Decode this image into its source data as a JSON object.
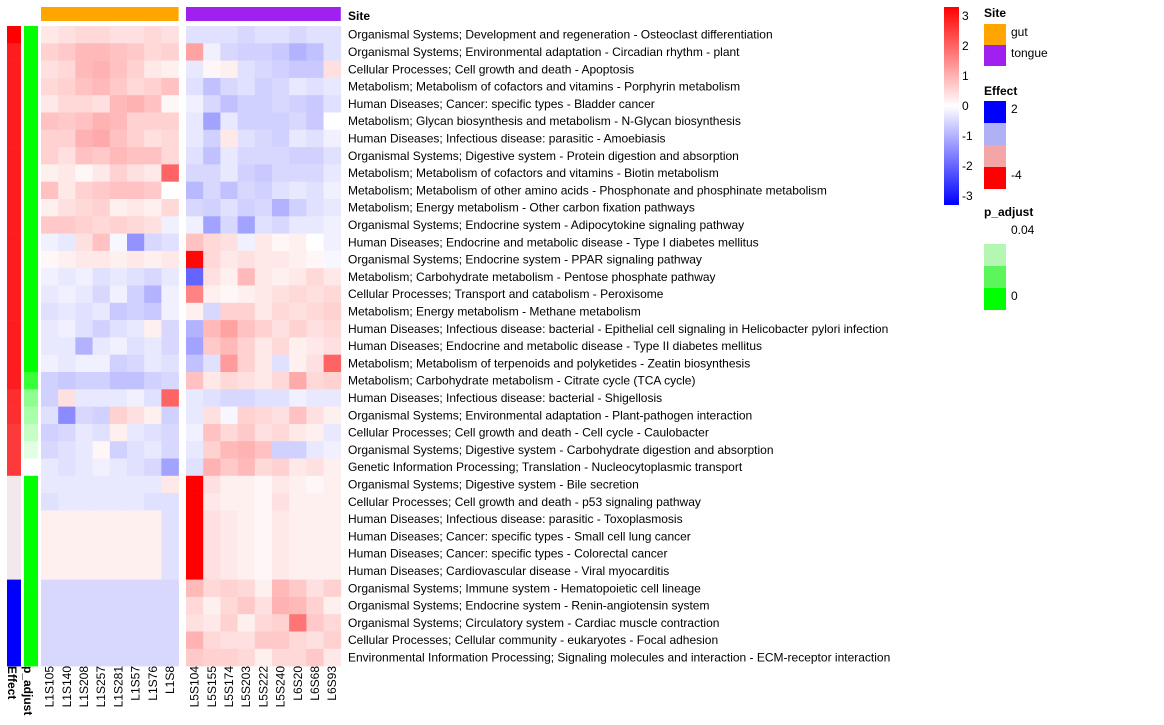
{
  "chart_data": {
    "type": "heatmap",
    "title": "",
    "annotation_labels": {
      "site": "Site",
      "effect": "Effect",
      "p_adjust": "p_adjust"
    },
    "columns": [
      "L1S105",
      "L1S140",
      "L1S208",
      "L1S257",
      "L1S281",
      "L1S57",
      "L1S76",
      "L1S8",
      "L5S104",
      "L5S155",
      "L5S174",
      "L5S203",
      "L5S222",
      "L5S240",
      "L6S20",
      "L6S68",
      "L6S93"
    ],
    "column_site": [
      "gut",
      "gut",
      "gut",
      "gut",
      "gut",
      "gut",
      "gut",
      "gut",
      "tongue",
      "tongue",
      "tongue",
      "tongue",
      "tongue",
      "tongue",
      "tongue",
      "tongue",
      "tongue"
    ],
    "rows": [
      "Organismal Systems; Development and regeneration - Osteoclast differentiation",
      "Organismal Systems; Environmental adaptation - Circadian rhythm - plant",
      "Cellular Processes; Cell growth and death - Apoptosis",
      "Metabolism; Metabolism of cofactors and vitamins - Porphyrin metabolism",
      "Human Diseases; Cancer: specific types - Bladder cancer",
      "Metabolism; Glycan biosynthesis and metabolism - N-Glycan biosynthesis",
      "Human Diseases; Infectious disease: parasitic - Amoebiasis",
      "Organismal Systems; Digestive system - Protein digestion and absorption",
      "Metabolism; Metabolism of cofactors and vitamins - Biotin metabolism",
      "Metabolism; Metabolism of other amino acids - Phosphonate and phosphinate metabolism",
      "Metabolism; Energy metabolism - Other carbon fixation pathways",
      "Organismal Systems; Endocrine system - Adipocytokine signaling pathway",
      "Human Diseases; Endocrine and metabolic disease - Type I diabetes mellitus",
      "Organismal Systems; Endocrine system - PPAR signaling pathway",
      "Metabolism; Carbohydrate metabolism - Pentose phosphate pathway",
      "Cellular Processes; Transport and catabolism - Peroxisome",
      "Metabolism; Energy metabolism - Methane metabolism",
      "Human Diseases; Infectious disease: bacterial - Epithelial cell signaling in Helicobacter pylori infection",
      "Human Diseases; Endocrine and metabolic disease - Type II diabetes mellitus",
      "Metabolism; Metabolism of terpenoids and polyketides - Zeatin biosynthesis",
      "Metabolism; Carbohydrate metabolism - Citrate cycle (TCA cycle)",
      "Human Diseases; Infectious disease: bacterial - Shigellosis",
      "Organismal Systems; Environmental adaptation - Plant-pathogen interaction",
      "Cellular Processes; Cell growth and death - Cell cycle - Caulobacter",
      "Organismal Systems; Digestive system - Carbohydrate digestion and absorption",
      "Genetic Information Processing; Translation - Nucleocytoplasmic transport",
      "Organismal Systems; Digestive system - Bile secretion",
      "Cellular Processes; Cell growth and death - p53 signaling pathway",
      "Human Diseases; Infectious disease: parasitic - Toxoplasmosis",
      "Human Diseases; Cancer: specific types - Small cell lung cancer",
      "Human Diseases; Cancer: specific types - Colorectal cancer",
      "Human Diseases; Cardiovascular disease - Viral myocarditis",
      "Organismal Systems; Immune system - Hematopoietic cell lineage",
      "Organismal Systems; Endocrine system - Renin-angiotensin system",
      "Organismal Systems; Circulatory system - Cardiac muscle contraction",
      "Cellular Processes; Cellular community - eukaryotes - Focal adhesion",
      "Environmental Information Processing; Signaling molecules and interaction - ECM-receptor interaction"
    ],
    "values": [
      [
        0.3,
        0.4,
        0.5,
        0.5,
        0.4,
        0.4,
        0.5,
        0.4,
        -0.4,
        -0.4,
        -0.4,
        -0.5,
        -0.4,
        -0.4,
        -0.5,
        -0.4,
        -0.4
      ],
      [
        0.6,
        0.7,
        0.9,
        0.9,
        0.8,
        0.7,
        0.5,
        0.6,
        1.2,
        -0.2,
        -0.5,
        -0.6,
        -0.6,
        -0.7,
        -1.0,
        -0.8,
        -0.4
      ],
      [
        0.4,
        0.5,
        0.9,
        1.0,
        0.8,
        0.6,
        0.3,
        0.2,
        -0.3,
        0.1,
        0.2,
        -0.4,
        -0.5,
        -0.6,
        -0.7,
        -0.7,
        0.4
      ],
      [
        0.5,
        0.6,
        0.8,
        0.9,
        0.7,
        0.5,
        0.6,
        0.8,
        -0.4,
        -0.8,
        -0.5,
        -0.4,
        -0.6,
        -0.5,
        -0.3,
        -0.4,
        -0.3
      ],
      [
        0.3,
        0.5,
        0.5,
        0.4,
        0.9,
        1.0,
        0.8,
        0.1,
        -0.2,
        -0.5,
        -0.8,
        -0.6,
        -0.6,
        -0.5,
        -0.6,
        -0.7,
        -0.4
      ],
      [
        0.8,
        0.7,
        0.8,
        1.0,
        0.9,
        0.6,
        0.6,
        0.6,
        -0.3,
        -1.2,
        -0.3,
        -0.6,
        -0.6,
        -0.6,
        -0.5,
        -0.7,
        0.0
      ],
      [
        0.6,
        0.6,
        1.0,
        1.1,
        0.8,
        0.6,
        0.4,
        0.5,
        -0.3,
        -0.6,
        0.3,
        -0.4,
        -0.5,
        -0.6,
        -0.3,
        -0.4,
        -0.2
      ],
      [
        0.6,
        0.4,
        0.8,
        0.7,
        0.9,
        0.8,
        0.8,
        0.5,
        -0.4,
        -0.8,
        -0.3,
        -0.5,
        -0.5,
        -0.5,
        -0.6,
        -0.6,
        -0.4
      ],
      [
        0.2,
        0.3,
        0.1,
        0.3,
        0.6,
        0.4,
        0.3,
        2.0,
        -0.5,
        -0.5,
        -0.3,
        -0.6,
        -0.7,
        -0.5,
        -0.5,
        -0.5,
        -0.3
      ],
      [
        0.8,
        0.3,
        0.6,
        0.7,
        0.8,
        0.8,
        0.7,
        0.0,
        -0.9,
        -0.5,
        -0.8,
        -0.5,
        -0.6,
        -0.4,
        -0.3,
        -0.4,
        -0.2
      ],
      [
        0.2,
        0.4,
        0.5,
        0.6,
        0.2,
        0.3,
        0.2,
        0.5,
        -0.5,
        -0.6,
        -0.4,
        -0.6,
        -0.5,
        -1.0,
        -0.6,
        -0.4,
        -0.3
      ],
      [
        0.7,
        0.7,
        0.6,
        0.5,
        0.6,
        0.5,
        0.4,
        -0.2,
        -0.2,
        -1.2,
        -0.5,
        -1.2,
        -0.4,
        -0.5,
        -0.3,
        -0.3,
        -0.2
      ],
      [
        -0.2,
        -0.3,
        0.4,
        0.8,
        -0.1,
        -1.4,
        -0.5,
        -0.4,
        0.8,
        0.5,
        0.4,
        -0.2,
        0.3,
        0.1,
        0.2,
        0.0,
        -0.2
      ],
      [
        0.1,
        0.2,
        0.3,
        0.3,
        0.2,
        0.3,
        0.2,
        0.3,
        3.2,
        0.5,
        0.3,
        0.4,
        0.3,
        0.3,
        0.2,
        0.1,
        -0.1
      ],
      [
        -0.2,
        -0.3,
        -0.2,
        -0.4,
        -0.3,
        -0.4,
        -0.5,
        -0.3,
        -2.0,
        0.4,
        0.2,
        0.9,
        0.3,
        0.2,
        0.3,
        0.5,
        0.3
      ],
      [
        -0.3,
        -0.2,
        -0.3,
        -0.5,
        -0.2,
        -0.6,
        -1.0,
        -0.2,
        1.6,
        0.2,
        0.1,
        0.2,
        0.3,
        0.4,
        0.5,
        0.4,
        0.5
      ],
      [
        -0.4,
        -0.3,
        -0.4,
        -0.3,
        -0.7,
        -0.6,
        -0.7,
        -0.2,
        0.2,
        -0.5,
        0.6,
        0.6,
        0.3,
        0.5,
        0.4,
        0.5,
        0.6
      ],
      [
        -0.3,
        -0.2,
        -0.4,
        -0.6,
        -0.4,
        -0.3,
        0.2,
        -0.5,
        -1.0,
        0.9,
        1.2,
        0.8,
        0.6,
        0.4,
        0.6,
        0.4,
        0.5
      ],
      [
        -0.3,
        -0.3,
        -1.0,
        -0.3,
        -0.2,
        -0.4,
        -0.3,
        -0.5,
        -1.2,
        0.7,
        0.9,
        0.6,
        0.3,
        0.5,
        0.2,
        0.3,
        0.4
      ],
      [
        -0.2,
        -0.3,
        -0.2,
        -0.2,
        -0.6,
        -0.5,
        -0.3,
        -0.4,
        -0.8,
        -0.4,
        1.3,
        0.6,
        0.3,
        -0.4,
        0.2,
        0.4,
        2.0
      ],
      [
        -0.6,
        -0.7,
        -0.6,
        -0.6,
        -0.8,
        -0.8,
        -0.6,
        -0.5,
        0.8,
        0.3,
        0.5,
        0.4,
        0.3,
        0.5,
        1.1,
        0.5,
        0.6
      ],
      [
        -0.6,
        0.4,
        -0.3,
        -0.3,
        -0.3,
        -0.2,
        -0.4,
        2.0,
        -0.3,
        -0.4,
        -0.5,
        -0.5,
        -0.4,
        -0.4,
        -0.2,
        -0.3,
        -0.3
      ],
      [
        -0.4,
        -1.5,
        -0.5,
        -0.6,
        0.6,
        0.4,
        0.2,
        -0.6,
        -0.3,
        0.4,
        -0.1,
        0.6,
        0.5,
        0.4,
        0.8,
        0.4,
        0.2
      ],
      [
        -0.6,
        -0.5,
        -0.3,
        -0.4,
        0.2,
        -0.3,
        -0.4,
        -0.5,
        -0.2,
        0.8,
        0.5,
        0.7,
        0.4,
        0.5,
        0.3,
        0.2,
        -0.3
      ],
      [
        -0.5,
        -0.4,
        -0.3,
        0.1,
        -0.6,
        -0.4,
        -0.3,
        -0.5,
        -0.3,
        0.6,
        0.9,
        1.0,
        0.8,
        -0.6,
        -0.6,
        -0.3,
        -0.2
      ],
      [
        -0.3,
        -0.4,
        -0.3,
        -0.2,
        -0.3,
        -0.4,
        -0.5,
        -1.2,
        -0.4,
        1.0,
        0.7,
        0.9,
        0.5,
        0.6,
        0.3,
        0.4,
        0.2
      ],
      [
        -0.3,
        -0.3,
        -0.3,
        -0.3,
        -0.3,
        -0.3,
        -0.3,
        0.3,
        3.3,
        0.4,
        0.2,
        0.2,
        0.1,
        0.3,
        0.2,
        0.1,
        0.2
      ],
      [
        -0.4,
        -0.3,
        -0.3,
        -0.3,
        -0.3,
        -0.3,
        -0.4,
        -0.4,
        3.3,
        0.3,
        0.2,
        0.2,
        0.1,
        0.4,
        0.2,
        0.2,
        0.2
      ],
      [
        0.2,
        0.2,
        0.2,
        0.2,
        0.2,
        0.2,
        0.2,
        -0.4,
        3.3,
        0.4,
        0.3,
        0.2,
        0.1,
        0.3,
        0.2,
        0.2,
        0.2
      ],
      [
        0.2,
        0.2,
        0.2,
        0.2,
        0.2,
        0.2,
        0.2,
        -0.4,
        3.3,
        0.4,
        0.3,
        0.2,
        0.1,
        0.3,
        0.2,
        0.2,
        0.2
      ],
      [
        0.2,
        0.2,
        0.2,
        0.2,
        0.2,
        0.2,
        0.2,
        -0.4,
        3.3,
        0.4,
        0.3,
        0.2,
        0.1,
        0.3,
        0.2,
        0.2,
        0.2
      ],
      [
        0.2,
        0.2,
        0.2,
        0.2,
        0.2,
        0.2,
        0.2,
        -0.4,
        3.3,
        0.4,
        0.3,
        0.2,
        0.1,
        0.3,
        0.2,
        0.2,
        0.2
      ],
      [
        -0.5,
        -0.5,
        -0.5,
        -0.5,
        -0.5,
        -0.5,
        -0.5,
        -0.5,
        0.9,
        0.5,
        0.6,
        0.5,
        0.2,
        0.9,
        0.7,
        0.4,
        0.6
      ],
      [
        -0.5,
        -0.5,
        -0.5,
        -0.5,
        -0.5,
        -0.5,
        -0.5,
        -0.5,
        0.5,
        0.2,
        0.5,
        0.7,
        0.4,
        1.0,
        0.9,
        0.6,
        0.2
      ],
      [
        -0.5,
        -0.5,
        -0.5,
        -0.5,
        -0.5,
        -0.5,
        -0.5,
        -0.5,
        0.4,
        0.3,
        0.6,
        0.2,
        0.5,
        0.6,
        1.8,
        0.7,
        0.5
      ],
      [
        -0.5,
        -0.5,
        -0.5,
        -0.5,
        -0.5,
        -0.5,
        -0.5,
        -0.5,
        1.0,
        0.5,
        0.4,
        0.4,
        0.7,
        0.7,
        0.5,
        0.4,
        0.6
      ],
      [
        -0.5,
        -0.5,
        -0.5,
        -0.5,
        -0.5,
        -0.5,
        -0.5,
        -0.5,
        0.7,
        0.6,
        0.6,
        0.5,
        0.2,
        0.5,
        0.5,
        0.7,
        0.3
      ]
    ],
    "row_effect": [
      -4,
      -3.5,
      -3.5,
      -3.5,
      -3.5,
      -3.5,
      -3.5,
      -3.5,
      -3.5,
      -3.5,
      -3.5,
      -3.5,
      -3.5,
      -3.5,
      -3.5,
      -3.5,
      -3.5,
      -3.5,
      -3.5,
      -3.5,
      -3.5,
      -3.2,
      -3.2,
      -3,
      -3,
      -3,
      0,
      0,
      0,
      0,
      0,
      0,
      2,
      2,
      2,
      2,
      2
    ],
    "row_p_adjust": [
      0,
      0,
      0,
      0,
      0,
      0,
      0,
      0,
      0,
      0,
      0,
      0,
      0,
      0,
      0,
      0,
      0,
      0,
      0,
      0,
      0.01,
      0.025,
      0.03,
      0.035,
      0.04,
      0.045,
      0,
      0,
      0,
      0,
      0,
      0,
      0,
      0,
      0,
      0,
      0
    ],
    "heatmap_scale": {
      "min": -3.3,
      "max": 3.3,
      "ticks": [
        3,
        2,
        1,
        0,
        -1,
        -2,
        -3
      ],
      "colors": {
        "low": "#0000ff",
        "mid": "#ffffff",
        "high": "#ff0000"
      }
    },
    "site_legend": {
      "title": "Site",
      "items": [
        {
          "label": "gut",
          "color": "#ffa500"
        },
        {
          "label": "tongue",
          "color": "#a020f0"
        }
      ]
    },
    "effect_legend": {
      "title": "Effect",
      "items": [
        {
          "label": "2",
          "color": "#0000ff"
        },
        {
          "label": "",
          "color": "#b0b0f4"
        },
        {
          "label": "",
          "color": "#f4a6a6"
        },
        {
          "label": "-4",
          "color": "#ff0000"
        }
      ]
    },
    "p_adjust_legend": {
      "title": "p_adjust",
      "items": [
        {
          "label": "0.04",
          "color": "#ffffff"
        },
        {
          "label": "",
          "color": "#b3f7b3"
        },
        {
          "label": "",
          "color": "#5cf55c"
        },
        {
          "label": "0",
          "color": "#00ff00"
        }
      ]
    }
  }
}
